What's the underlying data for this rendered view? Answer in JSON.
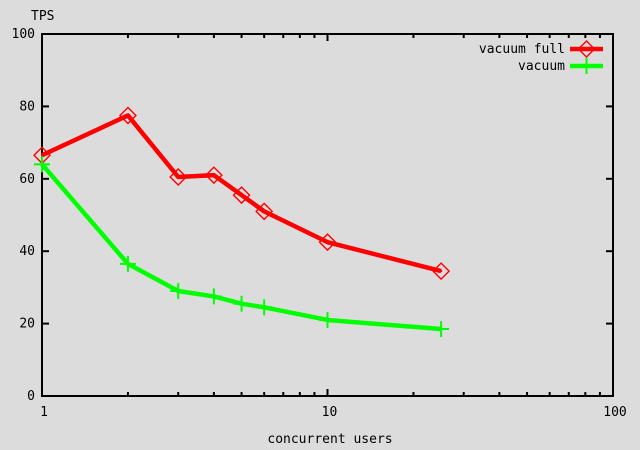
{
  "chart_data": {
    "type": "line",
    "title": "",
    "xlabel": "concurrent users",
    "ylabel": "TPS",
    "x_scale": "log",
    "xlim": [
      1,
      100
    ],
    "ylim": [
      0,
      100
    ],
    "x_major_ticks": [
      1,
      10,
      100
    ],
    "x_minor_ticks": [
      2,
      3,
      4,
      5,
      6,
      7,
      8,
      9,
      20,
      30,
      40,
      50,
      60,
      70,
      80,
      90
    ],
    "y_major_ticks": [
      0,
      20,
      40,
      60,
      80,
      100
    ],
    "grid": false,
    "legend_position": "top-right-inside",
    "series": [
      {
        "name": "vacuum full",
        "color": "#ff0000",
        "marker": "diamond",
        "x": [
          1,
          2,
          3,
          4,
          5,
          6,
          10,
          25
        ],
        "values": [
          66.5,
          77.5,
          60.5,
          61,
          55.5,
          51,
          42.5,
          34.5
        ]
      },
      {
        "name": "vacuum",
        "color": "#00ff00",
        "marker": "plus",
        "x": [
          1,
          2,
          3,
          4,
          5,
          6,
          10,
          25
        ],
        "values": [
          64,
          36.5,
          29,
          27.5,
          25.5,
          24.5,
          21,
          18.5
        ]
      }
    ]
  },
  "colors": {
    "background": "#dcdcdc",
    "axis": "#000000",
    "text": "#000000"
  }
}
